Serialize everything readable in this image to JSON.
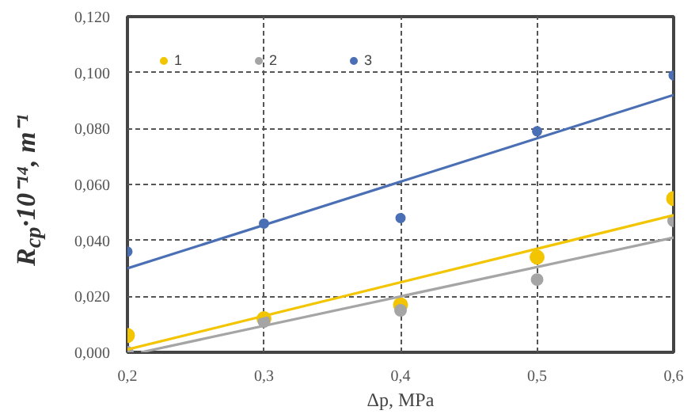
{
  "chart_data": {
    "type": "scatter",
    "xlabel": "Δp, MPa",
    "ylabel": "R$_{cp}$·10⁻¹⁴, m⁻¹",
    "x": [
      0.2,
      0.3,
      0.4,
      0.5,
      0.6
    ],
    "series": [
      {
        "name": "1",
        "color": "#f2c500",
        "values": [
          0.006,
          0.012,
          0.017,
          0.034,
          0.055
        ]
      },
      {
        "name": "2",
        "color": "#a5a5a5",
        "values": [
          0.0,
          0.011,
          0.015,
          0.026,
          0.047
        ]
      },
      {
        "name": "3",
        "color": "#4a6fb5",
        "values": [
          0.036,
          0.046,
          0.048,
          0.079,
          0.099
        ]
      },
      {
        "type": "line",
        "marker": "none",
        "color": "#f2c500",
        "x": [
          0.2,
          0.6
        ],
        "values": [
          0.001,
          0.049
        ]
      },
      {
        "type": "line",
        "marker": "none",
        "color": "#a5a5a5",
        "x": [
          0.21,
          0.6
        ],
        "values": [
          0.0,
          0.041
        ]
      },
      {
        "type": "line",
        "marker": "none",
        "color": "#4a6fb5",
        "x": [
          0.2,
          0.6
        ],
        "values": [
          0.03,
          0.092
        ]
      }
    ],
    "xlim": [
      0.2,
      0.6
    ],
    "ylim": [
      0,
      0.12
    ],
    "xticks": [
      {
        "value": 0.2,
        "label": "0,2"
      },
      {
        "value": 0.3,
        "label": "0,3"
      },
      {
        "value": 0.4,
        "label": "0,4"
      },
      {
        "value": 0.5,
        "label": "0,5"
      },
      {
        "value": 0.6,
        "label": "0,6"
      }
    ],
    "yticks": [
      {
        "value": 0,
        "label": "0,000"
      },
      {
        "value": 0.02,
        "label": "0,020"
      },
      {
        "value": 0.04,
        "label": "0,040"
      },
      {
        "value": 0.06,
        "label": "0,060"
      },
      {
        "value": 0.08,
        "label": "0,080"
      },
      {
        "value": 0.1,
        "label": "0,100"
      },
      {
        "value": 0.12,
        "label": "0,120"
      }
    ],
    "grid": true,
    "legend": "top left",
    "marker": "circle"
  }
}
